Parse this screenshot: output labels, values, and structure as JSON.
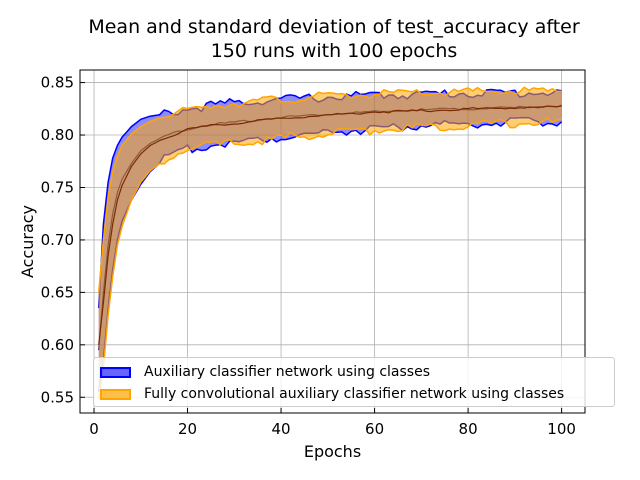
{
  "chart_data": {
    "type": "area",
    "title_lines": [
      "Mean and standard deviation of test_accuracy after",
      "150 runs with 100 epochs"
    ],
    "xlabel": "Epochs",
    "ylabel": "Accuracy",
    "xlim": [
      -3,
      105
    ],
    "ylim": [
      0.535,
      0.862
    ],
    "xticks": [
      0,
      20,
      40,
      60,
      80,
      100
    ],
    "yticks": [
      0.55,
      0.6,
      0.65,
      0.7,
      0.75,
      0.8,
      0.85
    ],
    "ytick_labels": [
      "0.55",
      "0.60",
      "0.65",
      "0.70",
      "0.75",
      "0.80",
      "0.85"
    ],
    "grid": true,
    "legend_position": "lower right",
    "series": [
      {
        "name": "Auxiliary classifier network using classes",
        "color": "#0000ff",
        "fill": "rgba(0,0,255,0.45)",
        "x": [
          1,
          2,
          3,
          4,
          5,
          6,
          8,
          10,
          12,
          15,
          20,
          25,
          30,
          40,
          50,
          60,
          70,
          80,
          90,
          100
        ],
        "mean": [
          0.595,
          0.65,
          0.695,
          0.725,
          0.745,
          0.758,
          0.773,
          0.785,
          0.792,
          0.799,
          0.806,
          0.81,
          0.812,
          0.817,
          0.82,
          0.822,
          0.824,
          0.825,
          0.826,
          0.828
        ],
        "upper": [
          0.635,
          0.715,
          0.755,
          0.778,
          0.79,
          0.798,
          0.808,
          0.815,
          0.818,
          0.82,
          0.825,
          0.828,
          0.831,
          0.834,
          0.836,
          0.838,
          0.839,
          0.84,
          0.84,
          0.841
        ],
        "lower": [
          0.555,
          0.585,
          0.635,
          0.672,
          0.7,
          0.718,
          0.738,
          0.753,
          0.765,
          0.777,
          0.786,
          0.791,
          0.793,
          0.798,
          0.803,
          0.806,
          0.809,
          0.811,
          0.812,
          0.813
        ]
      },
      {
        "name": "Fully convolutional auxiliary classifier network using classes",
        "color": "#ffa500",
        "fill": "rgba(255,165,0,0.55)",
        "x": [
          1,
          2,
          3,
          4,
          5,
          6,
          8,
          10,
          12,
          15,
          20,
          25,
          30,
          40,
          50,
          60,
          70,
          80,
          90,
          100
        ],
        "mean": [
          0.6,
          0.64,
          0.685,
          0.715,
          0.738,
          0.752,
          0.77,
          0.782,
          0.79,
          0.797,
          0.805,
          0.809,
          0.811,
          0.816,
          0.819,
          0.822,
          0.823,
          0.825,
          0.826,
          0.827
        ],
        "upper": [
          0.65,
          0.7,
          0.74,
          0.765,
          0.78,
          0.79,
          0.801,
          0.808,
          0.813,
          0.818,
          0.823,
          0.828,
          0.831,
          0.834,
          0.837,
          0.839,
          0.84,
          0.841,
          0.842,
          0.842
        ],
        "lower": [
          0.548,
          0.578,
          0.628,
          0.665,
          0.695,
          0.713,
          0.738,
          0.755,
          0.766,
          0.776,
          0.786,
          0.79,
          0.792,
          0.797,
          0.801,
          0.805,
          0.807,
          0.81,
          0.811,
          0.812
        ]
      }
    ]
  }
}
